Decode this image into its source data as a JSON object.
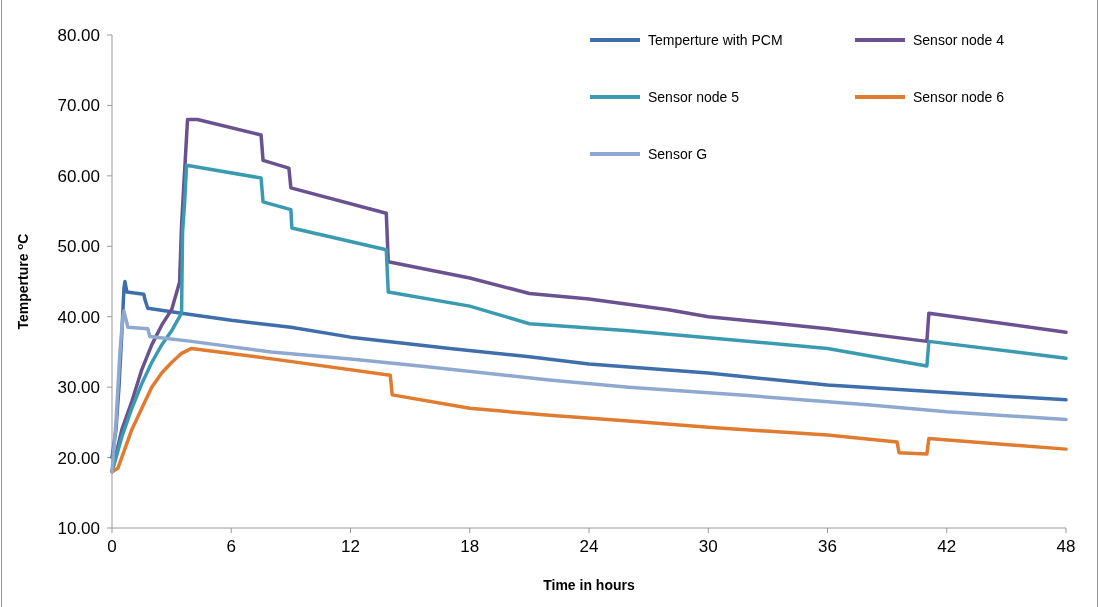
{
  "chart_data": {
    "type": "line",
    "xlabel": "Time in hours",
    "ylabel": "Temperture  $^{o}$C",
    "xlim": [
      0,
      48
    ],
    "ylim": [
      10,
      80
    ],
    "xticks": [
      0,
      6,
      12,
      18,
      24,
      30,
      36,
      42,
      48
    ],
    "yticks": [
      {
        "value": 10,
        "label": "10.00"
      },
      {
        "value": 20,
        "label": "20.00"
      },
      {
        "value": 30,
        "label": "30.00"
      },
      {
        "value": 40,
        "label": "40.00"
      },
      {
        "value": 50,
        "label": "50.00"
      },
      {
        "value": 60,
        "label": "60.00"
      },
      {
        "value": 70,
        "label": "70.00"
      },
      {
        "value": 80,
        "label": "80.00"
      }
    ],
    "grid": false,
    "legend": "top right",
    "marker": "none",
    "line_style": "solid",
    "series": [
      {
        "name": "Temperture with PCM",
        "color": "#3f6faa",
        "x": [
          0,
          0.2,
          0.35,
          0.5,
          0.6,
          0.65,
          0.75,
          1.6,
          1.65,
          1.8,
          3.5,
          6,
          9,
          12,
          17,
          21,
          24,
          30,
          36,
          41,
          48
        ],
        "values": [
          20,
          24,
          30,
          38,
          44,
          45,
          43.5,
          43.2,
          42.5,
          41.2,
          40.5,
          39.5,
          38.5,
          37.1,
          35.5,
          34.3,
          33.3,
          32,
          30.3,
          29.4,
          28.2
        ]
      },
      {
        "name": "Sensor node 4",
        "color": "#6a5190",
        "x": [
          0,
          0.5,
          1,
          1.5,
          2,
          2.5,
          3,
          3.4,
          3.5,
          3.6,
          3.7,
          3.8,
          4.3,
          7.5,
          7.6,
          8.9,
          9,
          13.8,
          13.9,
          18,
          21,
          24,
          28,
          30,
          36,
          41,
          41.1,
          48
        ],
        "values": [
          18,
          24,
          28,
          32.5,
          36,
          38.8,
          41,
          44.9,
          53,
          58,
          63,
          68,
          68,
          65.8,
          62.2,
          61.1,
          58.3,
          54.7,
          47.8,
          45.5,
          43.3,
          42.5,
          41,
          40,
          38.3,
          36.5,
          40.5,
          37.8
        ]
      },
      {
        "name": "Sensor node 5",
        "color": "#3a9ab0",
        "x": [
          0,
          0.5,
          1,
          1.5,
          2,
          2.5,
          3,
          3.5,
          3.55,
          3.65,
          3.75,
          7.5,
          7.6,
          9,
          9.05,
          13.8,
          13.9,
          18,
          21,
          26,
          30,
          36,
          41,
          41.1,
          48
        ],
        "values": [
          18,
          23,
          27,
          30.5,
          33.5,
          36,
          38,
          40.5,
          52,
          56,
          61.5,
          59.7,
          56.3,
          55.2,
          52.6,
          49.5,
          43.5,
          41.5,
          39,
          38,
          37,
          35.5,
          33,
          36.5,
          34.1
        ]
      },
      {
        "name": "Sensor node 6",
        "color": "#e07b30",
        "x": [
          0,
          0.3,
          1,
          1.5,
          2,
          2.5,
          3,
          3.5,
          4,
          8.6,
          14,
          14.1,
          18,
          22,
          26,
          30,
          36,
          39.5,
          39.6,
          41,
          41.1,
          48
        ],
        "values": [
          18,
          18.5,
          24,
          27,
          30,
          32,
          33.5,
          34.8,
          35.5,
          33.8,
          31.7,
          28.9,
          27,
          26,
          25.2,
          24.3,
          23.2,
          22.2,
          20.7,
          20.5,
          22.7,
          21.2
        ]
      },
      {
        "name": "Sensor G",
        "color": "#8fa8d0",
        "x": [
          0,
          0.2,
          0.4,
          0.55,
          0.6,
          0.8,
          1.8,
          1.9,
          4,
          8,
          12,
          15.5,
          22,
          26,
          32,
          38,
          42,
          48
        ],
        "values": [
          18,
          25,
          35,
          40,
          40.8,
          38.5,
          38.3,
          37.2,
          36.5,
          35,
          34,
          33,
          31,
          30,
          28.8,
          27.5,
          26.5,
          25.4
        ]
      }
    ]
  }
}
